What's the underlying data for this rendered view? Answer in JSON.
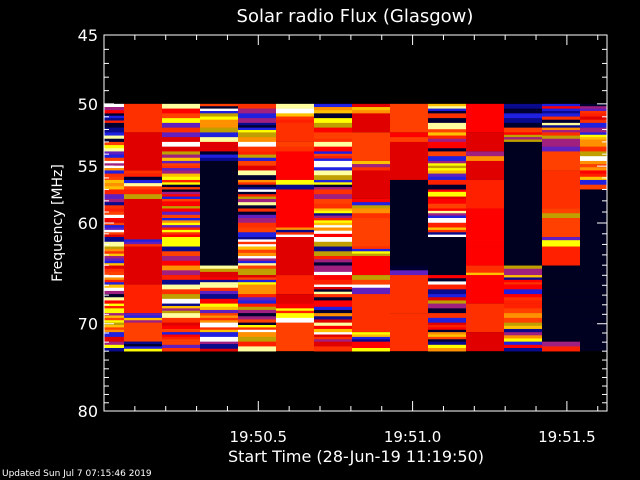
{
  "chart_data": {
    "type": "heatmap",
    "title": "Solar radio Flux (Glasgow)",
    "xlabel": "Start Time (28-Jun-19 11:19:50)",
    "ylabel": "Frequency [MHz]",
    "x_tick_labels": [
      "19:50.5",
      "19:51.0",
      "19:51.5"
    ],
    "x_tick_values_seconds": [
      30.5,
      31.0,
      31.5
    ],
    "xlim_seconds": [
      30.0,
      31.63
    ],
    "ylim": [
      45,
      80
    ],
    "y_tick_values": [
      45,
      50,
      55,
      60,
      70,
      80
    ],
    "y_tick_labels": [
      "45",
      "50",
      "55",
      "60",
      "70",
      "80"
    ],
    "y_scale": "log",
    "y_inverted": true,
    "colormap": [
      "#000030",
      "#0a0a8c",
      "#2020e0",
      "#6020c0",
      "#a02080",
      "#ff0000",
      "#ff3000",
      "#ff6000",
      "#ff9000",
      "#c0a000",
      "#ffc000",
      "#ffff00",
      "#ffffa0",
      "#ffffff"
    ],
    "dark_gap_color": "#000020",
    "n_channels": 26,
    "data_freq_range": [
      50,
      73
    ],
    "columns": [
      {
        "pattern": "striped",
        "gaps": []
      },
      {
        "pattern": "blocks",
        "gaps": []
      },
      {
        "pattern": "striped",
        "gaps": []
      },
      {
        "pattern": "striped",
        "gaps": [
          [
            54.5,
            63.5
          ]
        ]
      },
      {
        "pattern": "striped",
        "gaps": []
      },
      {
        "pattern": "blocks",
        "gaps": []
      },
      {
        "pattern": "striped",
        "gaps": []
      },
      {
        "pattern": "blocks",
        "gaps": []
      },
      {
        "pattern": "blocks",
        "gaps": [
          [
            54.5,
            63.5
          ]
        ]
      },
      {
        "pattern": "striped",
        "gaps": [
          [
            61.0,
            64.5
          ]
        ]
      },
      {
        "pattern": "blocks",
        "gaps": []
      },
      {
        "pattern": "striped",
        "gaps": [
          [
            52.8,
            63.5
          ]
        ]
      },
      {
        "pattern": "blocks",
        "gaps": [
          [
            62.5,
            71.0
          ]
        ]
      },
      {
        "pattern": "striped",
        "gaps": [
          [
            56.5,
            72.0
          ]
        ]
      }
    ]
  },
  "footer": {
    "updated": "Updated Sun Jul  7 07:15:46 2019"
  }
}
